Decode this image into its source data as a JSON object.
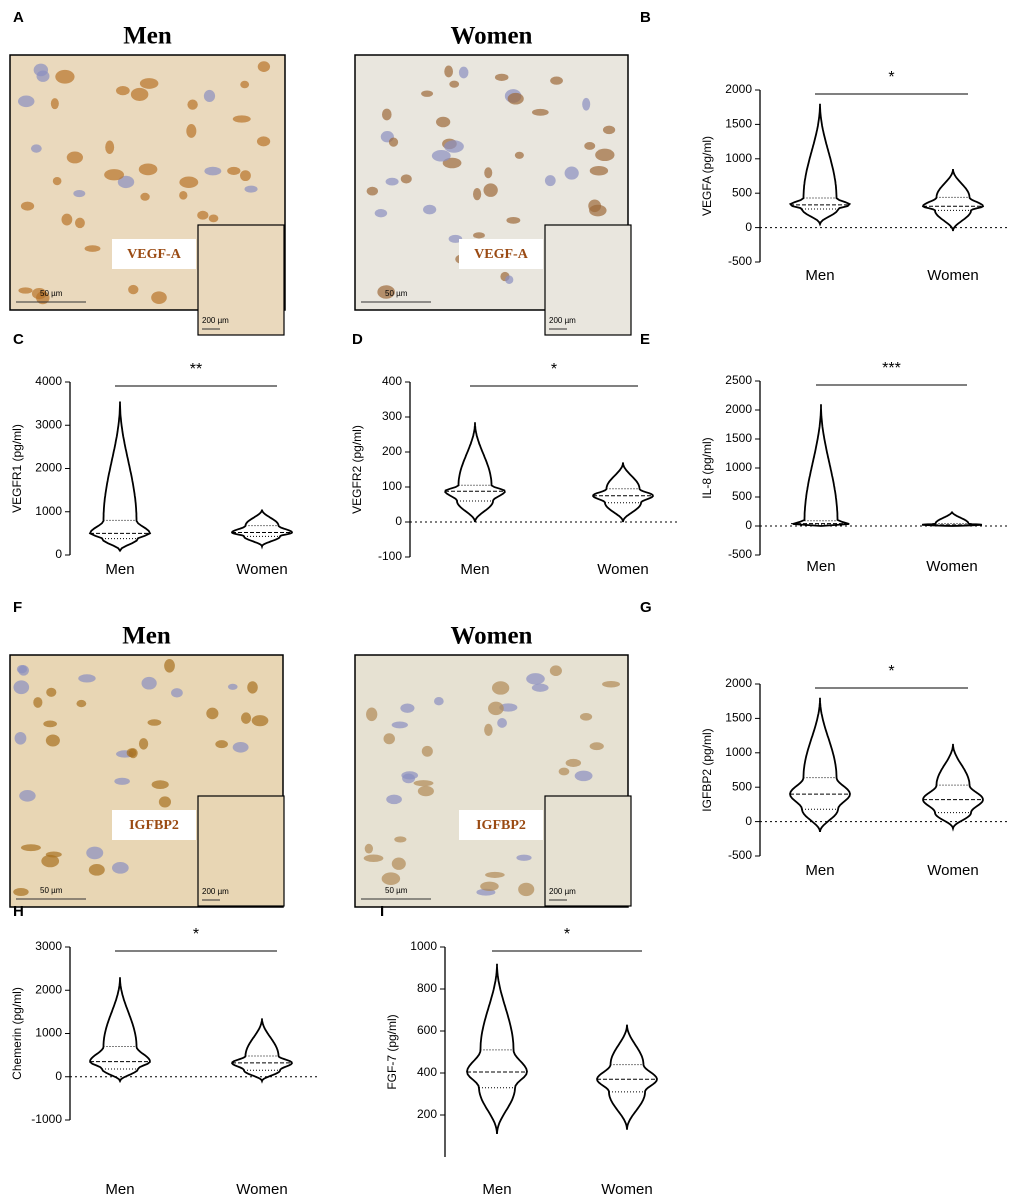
{
  "image_panels": [
    {
      "label": "A",
      "images": [
        {
          "title": "Men",
          "stain": "VEGF-A",
          "scale": "50 µm",
          "inset_scale": "200 µm"
        },
        {
          "title": "Women",
          "stain": "VEGF-A",
          "scale": "50 µm",
          "inset_scale": "200 µm"
        }
      ]
    },
    {
      "label": "F",
      "images": [
        {
          "title": "Men",
          "stain": "IGFBP2",
          "scale": "50 µm",
          "inset_scale": "200 µm"
        },
        {
          "title": "Women",
          "stain": "IGFBP2",
          "scale": "50 µm",
          "inset_scale": "200 µm"
        }
      ]
    }
  ],
  "chart_data": [
    {
      "type": "violin",
      "label": "B",
      "ylabel": "VEGFA (pg/ml)",
      "significance": "*",
      "categories": [
        "Men",
        "Women"
      ],
      "min": [
        50,
        -50
      ],
      "q1": [
        270,
        250
      ],
      "median": [
        330,
        310
      ],
      "q3": [
        430,
        440
      ],
      "max": [
        1800,
        850
      ],
      "ylim": [
        -500,
        2000
      ],
      "yticks": [
        -500,
        0,
        500,
        1000,
        1500,
        2000
      ],
      "zero_line": true
    },
    {
      "type": "violin",
      "label": "C",
      "ylabel": "VEGFR1 (pg/ml)",
      "significance": "**",
      "categories": [
        "Men",
        "Women"
      ],
      "min": [
        100,
        200
      ],
      "q1": [
        380,
        430
      ],
      "median": [
        500,
        520
      ],
      "q3": [
        800,
        680
      ],
      "max": [
        3550,
        1050
      ],
      "ylim": [
        0,
        4000
      ],
      "yticks": [
        0,
        1000,
        2000,
        3000,
        4000
      ],
      "zero_line": false
    },
    {
      "type": "violin",
      "label": "D",
      "ylabel": "VEGFR2 (pg/ml)",
      "significance": "*",
      "categories": [
        "Men",
        "Women"
      ],
      "min": [
        0,
        0
      ],
      "q1": [
        60,
        55
      ],
      "median": [
        88,
        75
      ],
      "q3": [
        105,
        95
      ],
      "max": [
        285,
        170
      ],
      "ylim": [
        -100,
        400
      ],
      "yticks": [
        -100,
        0,
        100,
        200,
        300,
        400
      ],
      "zero_line": true
    },
    {
      "type": "violin",
      "label": "E",
      "ylabel": "IL-8 (pg/ml)",
      "significance": "***",
      "categories": [
        "Men",
        "Women"
      ],
      "min": [
        0,
        0
      ],
      "q1": [
        20,
        10
      ],
      "median": [
        40,
        20
      ],
      "q3": [
        90,
        40
      ],
      "max": [
        2100,
        250
      ],
      "ylim": [
        -500,
        2500
      ],
      "yticks": [
        -500,
        0,
        500,
        1000,
        1500,
        2000,
        2500
      ],
      "zero_line": true
    },
    {
      "type": "violin",
      "label": "G",
      "ylabel": "IGFBP2 (pg/ml)",
      "significance": "*",
      "categories": [
        "Men",
        "Women"
      ],
      "min": [
        -150,
        -100
      ],
      "q1": [
        180,
        130
      ],
      "median": [
        400,
        320
      ],
      "q3": [
        640,
        530
      ],
      "max": [
        1800,
        1130
      ],
      "ylim": [
        -500,
        2000
      ],
      "yticks": [
        -500,
        0,
        500,
        1000,
        1500,
        2000
      ],
      "zero_line": true
    },
    {
      "type": "violin",
      "label": "H",
      "ylabel": "Chemerin (pg/ml)",
      "significance": "*",
      "categories": [
        "Men",
        "Women"
      ],
      "min": [
        -100,
        -100
      ],
      "q1": [
        180,
        150
      ],
      "median": [
        350,
        320
      ],
      "q3": [
        700,
        480
      ],
      "max": [
        2300,
        1350
      ],
      "ylim": [
        -1000,
        3000
      ],
      "yticks": [
        -1000,
        0,
        1000,
        2000,
        3000
      ],
      "zero_line": true
    },
    {
      "type": "violin",
      "label": "I",
      "ylabel": "FGF-7 (pg/ml)",
      "significance": "*",
      "categories": [
        "Men",
        "Women"
      ],
      "min": [
        110,
        130
      ],
      "q1": [
        330,
        310
      ],
      "median": [
        405,
        370
      ],
      "q3": [
        510,
        440
      ],
      "max": [
        920,
        630
      ],
      "ylim": [
        0,
        1000
      ],
      "yticks": [
        200,
        400,
        600,
        800,
        1000
      ],
      "zero_line": false
    }
  ]
}
